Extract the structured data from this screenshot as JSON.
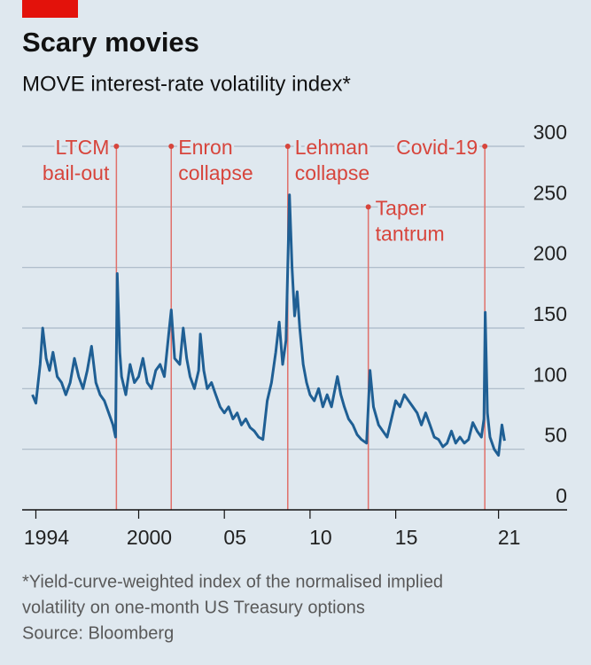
{
  "chart_data": {
    "type": "line",
    "title": "Scary movies",
    "subtitle": "MOVE interest-rate volatility index*",
    "x": [
      1993.8,
      1994.0,
      1994.25,
      1994.4,
      1994.6,
      1994.8,
      1995.0,
      1995.25,
      1995.5,
      1995.75,
      1996.0,
      1996.25,
      1996.5,
      1996.75,
      1997.0,
      1997.25,
      1997.5,
      1997.75,
      1998.0,
      1998.25,
      1998.5,
      1998.65,
      1998.75,
      1998.9,
      1999.0,
      1999.25,
      1999.5,
      1999.75,
      2000.0,
      2000.25,
      2000.5,
      2000.75,
      2001.0,
      2001.25,
      2001.5,
      2001.75,
      2001.9,
      2002.1,
      2002.4,
      2002.6,
      2002.8,
      2003.0,
      2003.25,
      2003.5,
      2003.6,
      2003.8,
      2004.0,
      2004.25,
      2004.5,
      2004.75,
      2005.0,
      2005.25,
      2005.5,
      2005.75,
      2006.0,
      2006.25,
      2006.5,
      2006.75,
      2007.0,
      2007.25,
      2007.5,
      2007.75,
      2008.0,
      2008.2,
      2008.4,
      2008.6,
      2008.8,
      2008.95,
      2009.1,
      2009.25,
      2009.4,
      2009.6,
      2009.8,
      2010.0,
      2010.25,
      2010.5,
      2010.75,
      2011.0,
      2011.25,
      2011.6,
      2011.8,
      2012.0,
      2012.25,
      2012.5,
      2012.75,
      2013.0,
      2013.3,
      2013.5,
      2013.7,
      2014.0,
      2014.25,
      2014.5,
      2014.75,
      2015.0,
      2015.25,
      2015.5,
      2015.75,
      2016.0,
      2016.25,
      2016.5,
      2016.75,
      2017.0,
      2017.25,
      2017.5,
      2017.75,
      2018.0,
      2018.25,
      2018.5,
      2018.75,
      2019.0,
      2019.25,
      2019.5,
      2019.75,
      2020.0,
      2020.15,
      2020.22,
      2020.35,
      2020.5,
      2020.75,
      2021.0,
      2021.2,
      2021.35
    ],
    "series": [
      {
        "name": "MOVE index",
        "color": "#1f5f94",
        "values": [
          95,
          88,
          120,
          150,
          125,
          115,
          130,
          110,
          105,
          95,
          105,
          125,
          110,
          100,
          115,
          135,
          105,
          95,
          90,
          80,
          70,
          60,
          195,
          130,
          110,
          95,
          120,
          105,
          110,
          125,
          105,
          100,
          115,
          120,
          110,
          145,
          165,
          125,
          120,
          150,
          125,
          110,
          100,
          115,
          145,
          115,
          100,
          105,
          95,
          85,
          80,
          85,
          75,
          80,
          70,
          75,
          68,
          65,
          60,
          58,
          90,
          105,
          130,
          155,
          120,
          140,
          260,
          200,
          160,
          180,
          150,
          120,
          105,
          95,
          90,
          100,
          85,
          95,
          85,
          110,
          95,
          85,
          75,
          70,
          62,
          58,
          55,
          115,
          85,
          70,
          65,
          60,
          75,
          90,
          85,
          95,
          90,
          85,
          80,
          70,
          80,
          70,
          60,
          58,
          52,
          55,
          65,
          55,
          60,
          55,
          58,
          72,
          65,
          60,
          75,
          163,
          80,
          60,
          50,
          45,
          70,
          57
        ]
      }
    ],
    "xlim": [
      1993.2,
      2025.0
    ],
    "xticks": [
      1994,
      2000,
      {
        "value": 2005,
        "label": "05"
      },
      {
        "value": 2010,
        "label": "10"
      },
      {
        "value": 2015,
        "label": "15"
      },
      {
        "value": 2021,
        "label": "21"
      }
    ],
    "ylim": [
      0,
      300
    ],
    "yticks": [
      0,
      50,
      100,
      150,
      200,
      250,
      300
    ],
    "grid": true,
    "annotations": [
      {
        "lines": [
          "LTCM",
          "bail-out"
        ],
        "x": 1998.7,
        "y": 300
      },
      {
        "lines": [
          "Enron",
          "collapse"
        ],
        "x": 2001.9,
        "y": 300
      },
      {
        "lines": [
          "Lehman",
          "collapse"
        ],
        "x": 2008.7,
        "y": 300
      },
      {
        "lines": [
          "Taper",
          "tantrum"
        ],
        "x": 2013.4,
        "y": 250
      },
      {
        "lines": [
          "Covid-19"
        ],
        "x": 2020.2,
        "y": 300
      }
    ],
    "annotation_color": "#d7453c",
    "footnote": [
      "*Yield-curve-weighted index of the normalised implied",
      "volatility on one-month US Treasury options"
    ],
    "source": "Source: Bloomberg"
  }
}
